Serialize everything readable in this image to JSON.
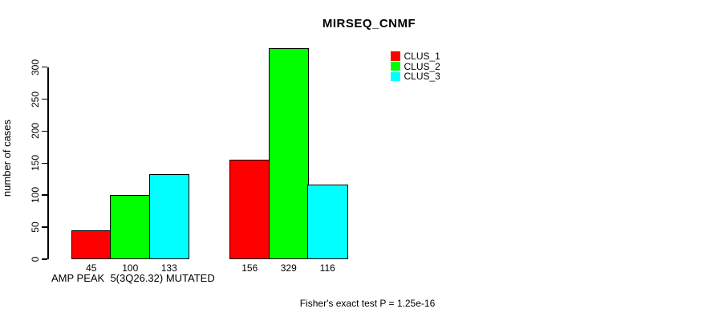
{
  "title": "MIRSEQ_CNMF",
  "y_axis": {
    "label": "number of cases"
  },
  "x_axis": {
    "group_label": "AMP PEAK  5(3Q26.32) MUTATED"
  },
  "footnote": "Fisher's exact test P = 1.25e-16",
  "legend": {
    "position": "top-right",
    "items": [
      {
        "label": "CLUS_1",
        "color": "#ff0000"
      },
      {
        "label": "CLUS_2",
        "color": "#00ff00"
      },
      {
        "label": "CLUS_3",
        "color": "#00ffff"
      }
    ]
  },
  "chart_data": {
    "type": "bar",
    "title": "MIRSEQ_CNMF",
    "ylabel": "number of cases",
    "xlabel": "AMP PEAK  5(3Q26.32) MUTATED",
    "ylim": [
      0,
      300
    ],
    "yticks": [
      0,
      50,
      100,
      150,
      200,
      250,
      300
    ],
    "n_groups": 2,
    "series": [
      {
        "name": "CLUS_1",
        "color": "#ff0000",
        "values": [
          45,
          156
        ]
      },
      {
        "name": "CLUS_2",
        "color": "#00ff00",
        "values": [
          100,
          329
        ]
      },
      {
        "name": "CLUS_3",
        "color": "#00ffff",
        "values": [
          133,
          116
        ]
      }
    ],
    "bar_value_labels": [
      [
        "45",
        "100",
        "133"
      ],
      [
        "156",
        "329",
        "116"
      ]
    ],
    "annotation": "Fisher's exact test P = 1.25e-16",
    "grid": false,
    "legend_position": "top-right",
    "axis_color": "#000000",
    "bar_border_color": "#000000",
    "background_color": "#ffffff"
  }
}
